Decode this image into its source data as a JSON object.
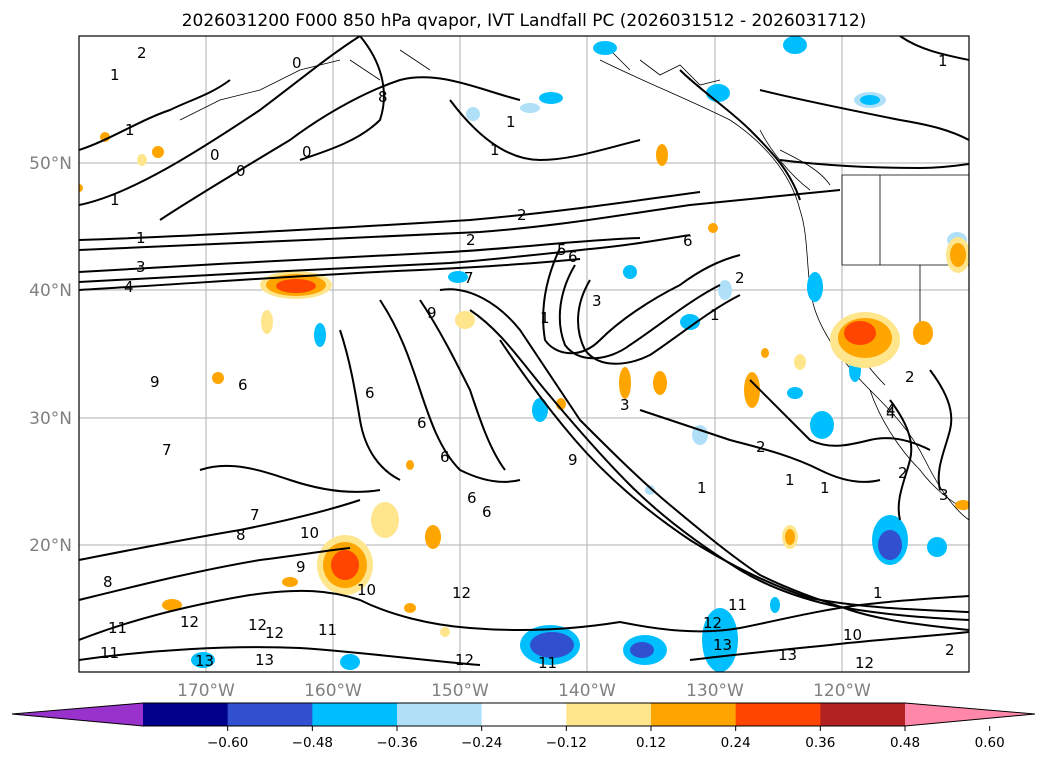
{
  "title": "2026031200 F000 850 hPa qvapor, IVT Landfall PC (2026031512 - 2026031712)",
  "lat_labels": [
    "50°N",
    "40°N",
    "30°N",
    "20°N"
  ],
  "lon_labels": [
    "170°W",
    "160°W",
    "150°W",
    "140°W",
    "130°W",
    "120°W"
  ],
  "colorbar": {
    "ticks": [
      "−0.60",
      "−0.48",
      "−0.36",
      "−0.24",
      "−0.12",
      "0.12",
      "0.24",
      "0.36",
      "0.48",
      "0.60"
    ],
    "colors": [
      "#9932cc",
      "#00008b",
      "#3050d0",
      "#00bfff",
      "#b0e0f8",
      "#ffffff",
      "#ffe68c",
      "#ffa500",
      "#ff4500",
      "#b22222",
      "#ff88aa"
    ]
  },
  "contour_labels": [
    "2",
    "1",
    "1",
    "0",
    "0",
    "0",
    "1",
    "1",
    "2",
    "1",
    "1",
    "2",
    "5",
    "6",
    "6",
    "3",
    "4",
    "7",
    "2",
    "1",
    "3",
    "4",
    "3",
    "6",
    "6",
    "6",
    "6",
    "6",
    "6",
    "9",
    "7",
    "7",
    "9",
    "8",
    "8",
    "10",
    "10",
    "11",
    "9",
    "11",
    "12",
    "12",
    "12",
    "13",
    "12",
    "11",
    "12",
    "13",
    "11",
    "2",
    "1",
    "1",
    "2",
    "2",
    "1",
    "13",
    "12",
    "11",
    "10",
    "13",
    "12",
    "4",
    "3",
    "2",
    "1",
    "9",
    "1",
    "8",
    "0",
    "1"
  ],
  "chart_data": {
    "type": "map",
    "projection": "plate carree",
    "title": "2026031200 F000 850 hPa qvapor, IVT Landfall PC (2026031512 - 2026031712)",
    "black_contours": "850 hPa water vapor mixing ratio (g/kg), values 0 to 13",
    "shading": "IVT landfall principal component correlation",
    "lon_range": [
      -180,
      -110
    ],
    "lat_range": [
      10,
      60
    ],
    "colorbar_levels": [
      -0.6,
      -0.48,
      -0.36,
      -0.24,
      -0.12,
      0.12,
      0.24,
      0.36,
      0.48,
      0.6
    ]
  }
}
